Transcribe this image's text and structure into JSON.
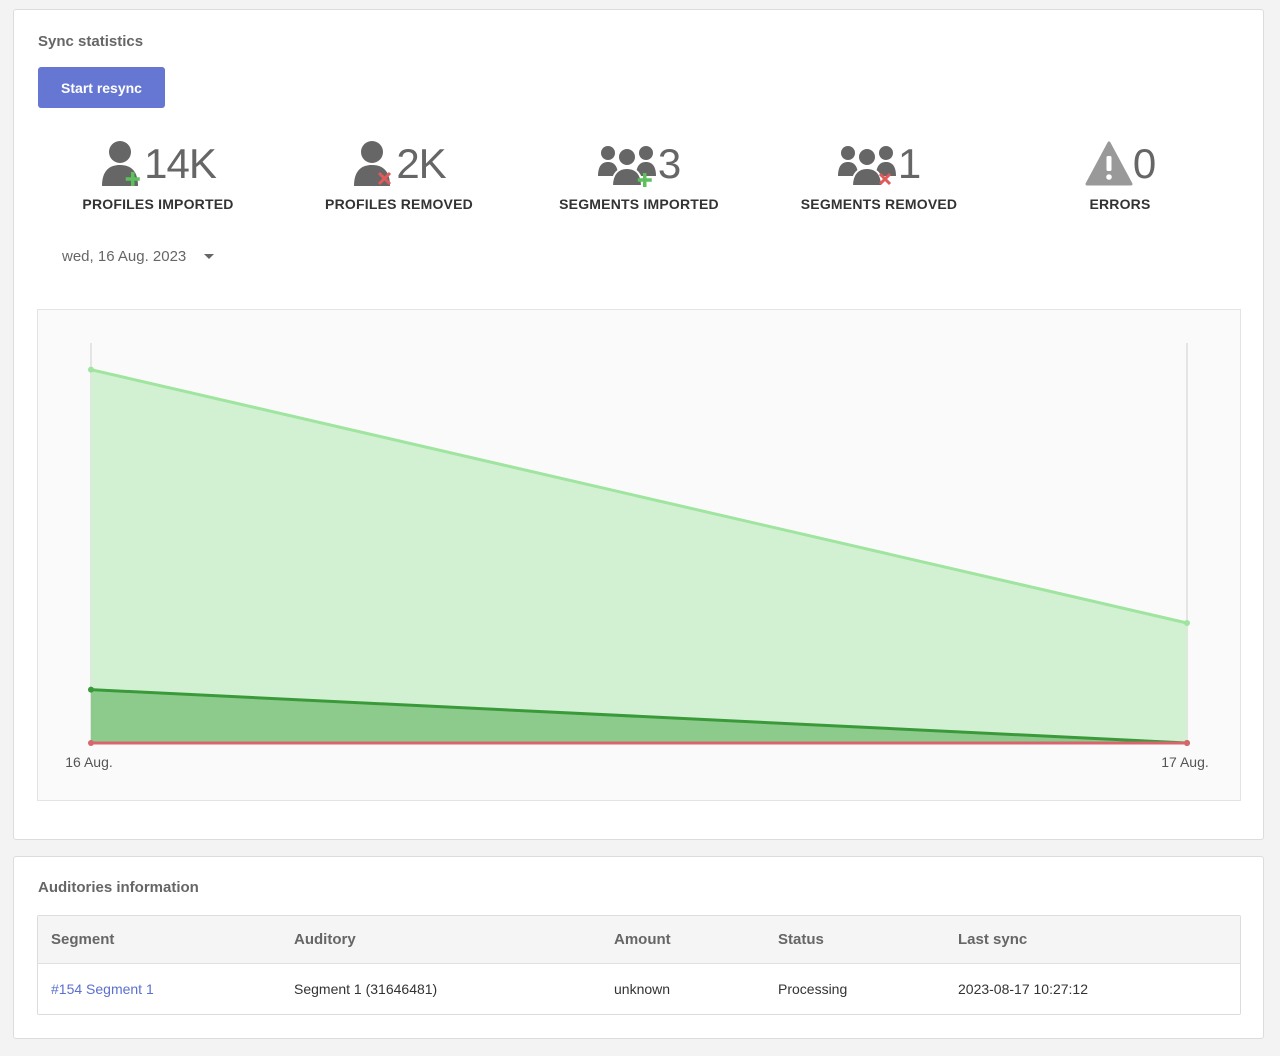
{
  "stats_card": {
    "title": "Sync statistics",
    "resync_button": "Start resync",
    "date_filter": "wed, 16 Aug. 2023"
  },
  "stats": [
    {
      "value": "14K",
      "label": "PROFILES IMPORTED",
      "icon": "user-plus-icon"
    },
    {
      "value": "2K",
      "label": "PROFILES REMOVED",
      "icon": "user-remove-icon"
    },
    {
      "value": "3",
      "label": "SEGMENTS IMPORTED",
      "icon": "users-plus-icon"
    },
    {
      "value": "1",
      "label": "SEGMENTS REMOVED",
      "icon": "users-remove-icon"
    },
    {
      "value": "0",
      "label": "ERRORS",
      "icon": "warning-icon"
    }
  ],
  "colors": {
    "accent": "#6677d3",
    "icon_gray": "#666666",
    "plus_green": "#5cc05c",
    "remove_red": "#e05a5a",
    "area_light_fill": "#d2f1d2",
    "area_light_line": "#9fe49f",
    "area_dark_fill": "#8dcb8d",
    "area_dark_line": "#3a9a3a",
    "errors_line": "#d9646e",
    "link": "#5b6fcf"
  },
  "chart_data": {
    "type": "area",
    "x": [
      "16 Aug.",
      "17 Aug."
    ],
    "series": [
      {
        "values": [
          14,
          4.5
        ]
      },
      {
        "values": [
          2,
          0
        ]
      },
      {
        "values": [
          0,
          0
        ]
      }
    ],
    "ylim": [
      0,
      15
    ],
    "grid": false,
    "legend": "none"
  },
  "auditories_card": {
    "title": "Auditories information",
    "columns": [
      "Segment",
      "Auditory",
      "Amount",
      "Status",
      "Last sync"
    ],
    "rows": [
      {
        "segment": "#154 Segment 1",
        "auditory": "Segment 1 (31646481)",
        "amount": "unknown",
        "status": "Processing",
        "last_sync": "2023-08-17 10:27:12"
      }
    ]
  }
}
